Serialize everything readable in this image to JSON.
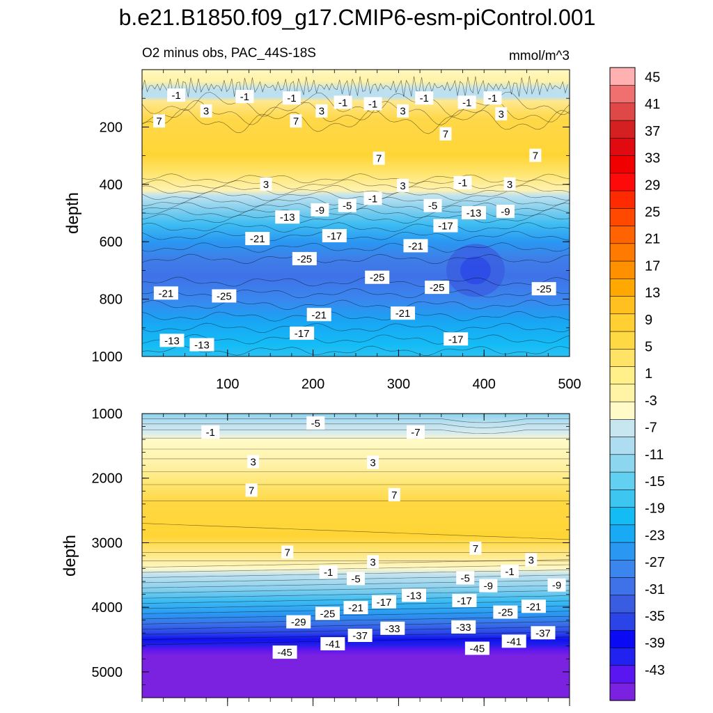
{
  "title": "b.e21.B1850.f09_g17.CMIP6-esm-piControl.001",
  "panel_left_label": "O2 minus obs, PAC_44S-18S",
  "panel_right_label": "mmol/m^3",
  "colors": {
    "text": "#000000",
    "contour_line": "#000000",
    "palette": [
      "#7b22e0",
      "#5a16f0",
      "#2222f0",
      "#0a0af5",
      "#2a44e8",
      "#3a5ce0",
      "#3f72e8",
      "#3a86ee",
      "#2a98f2",
      "#18aaf4",
      "#14bcf5",
      "#3cc6f0",
      "#62d0f0",
      "#8cd6ef",
      "#aedcf0",
      "#c8e6f0",
      "#fffac8",
      "#fff4a6",
      "#fff08a",
      "#ffe366",
      "#ffd944",
      "#ffcf33",
      "#ffc020",
      "#ffa800",
      "#ff9000",
      "#ff7a00",
      "#ff6400",
      "#ff4800",
      "#ff2a00",
      "#ff0a0a",
      "#f00000",
      "#e00a10",
      "#d42020",
      "#e04848",
      "#f07070",
      "#ffb0b0"
    ]
  },
  "chart_data": [
    {
      "type": "heatmap",
      "panel": "upper",
      "title": "O2 minus obs, PAC_44S-18S",
      "units": "mmol/m^3",
      "xlabel": "",
      "ylabel": "depth",
      "x_ticks": [
        100,
        200,
        300,
        400,
        500
      ],
      "y_ticks": [
        200,
        400,
        600,
        800,
        1000
      ],
      "xlim": [
        0,
        500
      ],
      "ylim": [
        1000,
        0
      ],
      "contour_labels": [
        {
          "x": 40,
          "y": 90,
          "text": "-1"
        },
        {
          "x": 120,
          "y": 95,
          "text": "-1"
        },
        {
          "x": 175,
          "y": 100,
          "text": "-1"
        },
        {
          "x": 235,
          "y": 115,
          "text": "-1"
        },
        {
          "x": 270,
          "y": 120,
          "text": "-1"
        },
        {
          "x": 330,
          "y": 100,
          "text": "-1"
        },
        {
          "x": 380,
          "y": 115,
          "text": "-1"
        },
        {
          "x": 410,
          "y": 100,
          "text": "-1"
        },
        {
          "x": 75,
          "y": 145,
          "text": "3"
        },
        {
          "x": 210,
          "y": 145,
          "text": "3"
        },
        {
          "x": 305,
          "y": 145,
          "text": "3"
        },
        {
          "x": 420,
          "y": 155,
          "text": "3"
        },
        {
          "x": 20,
          "y": 180,
          "text": "7"
        },
        {
          "x": 180,
          "y": 180,
          "text": "7"
        },
        {
          "x": 355,
          "y": 225,
          "text": "7"
        },
        {
          "x": 277,
          "y": 310,
          "text": "7"
        },
        {
          "x": 460,
          "y": 300,
          "text": "7"
        },
        {
          "x": 145,
          "y": 400,
          "text": "3"
        },
        {
          "x": 305,
          "y": 405,
          "text": "3"
        },
        {
          "x": 375,
          "y": 395,
          "text": "-1"
        },
        {
          "x": 430,
          "y": 400,
          "text": "3"
        },
        {
          "x": 270,
          "y": 450,
          "text": "-1"
        },
        {
          "x": 240,
          "y": 475,
          "text": "-5"
        },
        {
          "x": 340,
          "y": 475,
          "text": "-5"
        },
        {
          "x": 208,
          "y": 490,
          "text": "-9"
        },
        {
          "x": 425,
          "y": 495,
          "text": "-9"
        },
        {
          "x": 170,
          "y": 515,
          "text": "-13"
        },
        {
          "x": 388,
          "y": 500,
          "text": "-13"
        },
        {
          "x": 355,
          "y": 545,
          "text": "-17"
        },
        {
          "x": 225,
          "y": 580,
          "text": "-17"
        },
        {
          "x": 135,
          "y": 590,
          "text": "-21"
        },
        {
          "x": 320,
          "y": 615,
          "text": "-21"
        },
        {
          "x": 190,
          "y": 660,
          "text": "-25"
        },
        {
          "x": 275,
          "y": 725,
          "text": "-25"
        },
        {
          "x": 345,
          "y": 760,
          "text": "-25"
        },
        {
          "x": 470,
          "y": 765,
          "text": "-25"
        },
        {
          "x": 28,
          "y": 780,
          "text": "-21"
        },
        {
          "x": 96,
          "y": 790,
          "text": "-25"
        },
        {
          "x": 207,
          "y": 855,
          "text": "-21"
        },
        {
          "x": 305,
          "y": 850,
          "text": "-21"
        },
        {
          "x": 187,
          "y": 920,
          "text": "-17"
        },
        {
          "x": 367,
          "y": 940,
          "text": "-17"
        },
        {
          "x": 35,
          "y": 945,
          "text": "-13"
        },
        {
          "x": 70,
          "y": 960,
          "text": "-13"
        }
      ]
    },
    {
      "type": "heatmap",
      "panel": "lower",
      "xlabel": "",
      "ylabel": "depth",
      "y_ticks": [
        1000,
        2000,
        3000,
        4000,
        5000
      ],
      "xlim": [
        0,
        500
      ],
      "ylim": [
        5400,
        1000
      ],
      "contour_labels": [
        {
          "x": 203,
          "y": 1150,
          "text": "-5"
        },
        {
          "x": 80,
          "y": 1290,
          "text": "-1"
        },
        {
          "x": 320,
          "y": 1290,
          "text": "-7"
        },
        {
          "x": 130,
          "y": 1750,
          "text": "3"
        },
        {
          "x": 270,
          "y": 1760,
          "text": "3"
        },
        {
          "x": 128,
          "y": 2190,
          "text": "7"
        },
        {
          "x": 295,
          "y": 2260,
          "text": "7"
        },
        {
          "x": 170,
          "y": 3150,
          "text": "7"
        },
        {
          "x": 390,
          "y": 3090,
          "text": "7"
        },
        {
          "x": 270,
          "y": 3300,
          "text": "3"
        },
        {
          "x": 455,
          "y": 3270,
          "text": "3"
        },
        {
          "x": 218,
          "y": 3460,
          "text": "-1"
        },
        {
          "x": 430,
          "y": 3450,
          "text": "-1"
        },
        {
          "x": 250,
          "y": 3560,
          "text": "-5"
        },
        {
          "x": 378,
          "y": 3550,
          "text": "-5"
        },
        {
          "x": 405,
          "y": 3670,
          "text": "-9"
        },
        {
          "x": 485,
          "y": 3660,
          "text": "-9"
        },
        {
          "x": 318,
          "y": 3820,
          "text": "-13"
        },
        {
          "x": 283,
          "y": 3920,
          "text": "-17"
        },
        {
          "x": 377,
          "y": 3900,
          "text": "-17"
        },
        {
          "x": 250,
          "y": 4010,
          "text": "-21"
        },
        {
          "x": 458,
          "y": 3990,
          "text": "-21"
        },
        {
          "x": 217,
          "y": 4100,
          "text": "-25"
        },
        {
          "x": 425,
          "y": 4080,
          "text": "-25"
        },
        {
          "x": 183,
          "y": 4230,
          "text": "-29"
        },
        {
          "x": 293,
          "y": 4330,
          "text": "-33"
        },
        {
          "x": 376,
          "y": 4310,
          "text": "-33"
        },
        {
          "x": 255,
          "y": 4440,
          "text": "-37"
        },
        {
          "x": 469,
          "y": 4400,
          "text": "-37"
        },
        {
          "x": 223,
          "y": 4570,
          "text": "-41"
        },
        {
          "x": 435,
          "y": 4530,
          "text": "-41"
        },
        {
          "x": 167,
          "y": 4700,
          "text": "-45"
        },
        {
          "x": 392,
          "y": 4640,
          "text": "-45"
        }
      ]
    },
    {
      "type": "colorbar",
      "tick_labels": [
        "45",
        "41",
        "37",
        "33",
        "29",
        "25",
        "21",
        "17",
        "13",
        "9",
        "5",
        "1",
        "-3",
        "-7",
        "-11",
        "-15",
        "-19",
        "-23",
        "-27",
        "-31",
        "-35",
        "-39",
        "-43"
      ]
    }
  ]
}
